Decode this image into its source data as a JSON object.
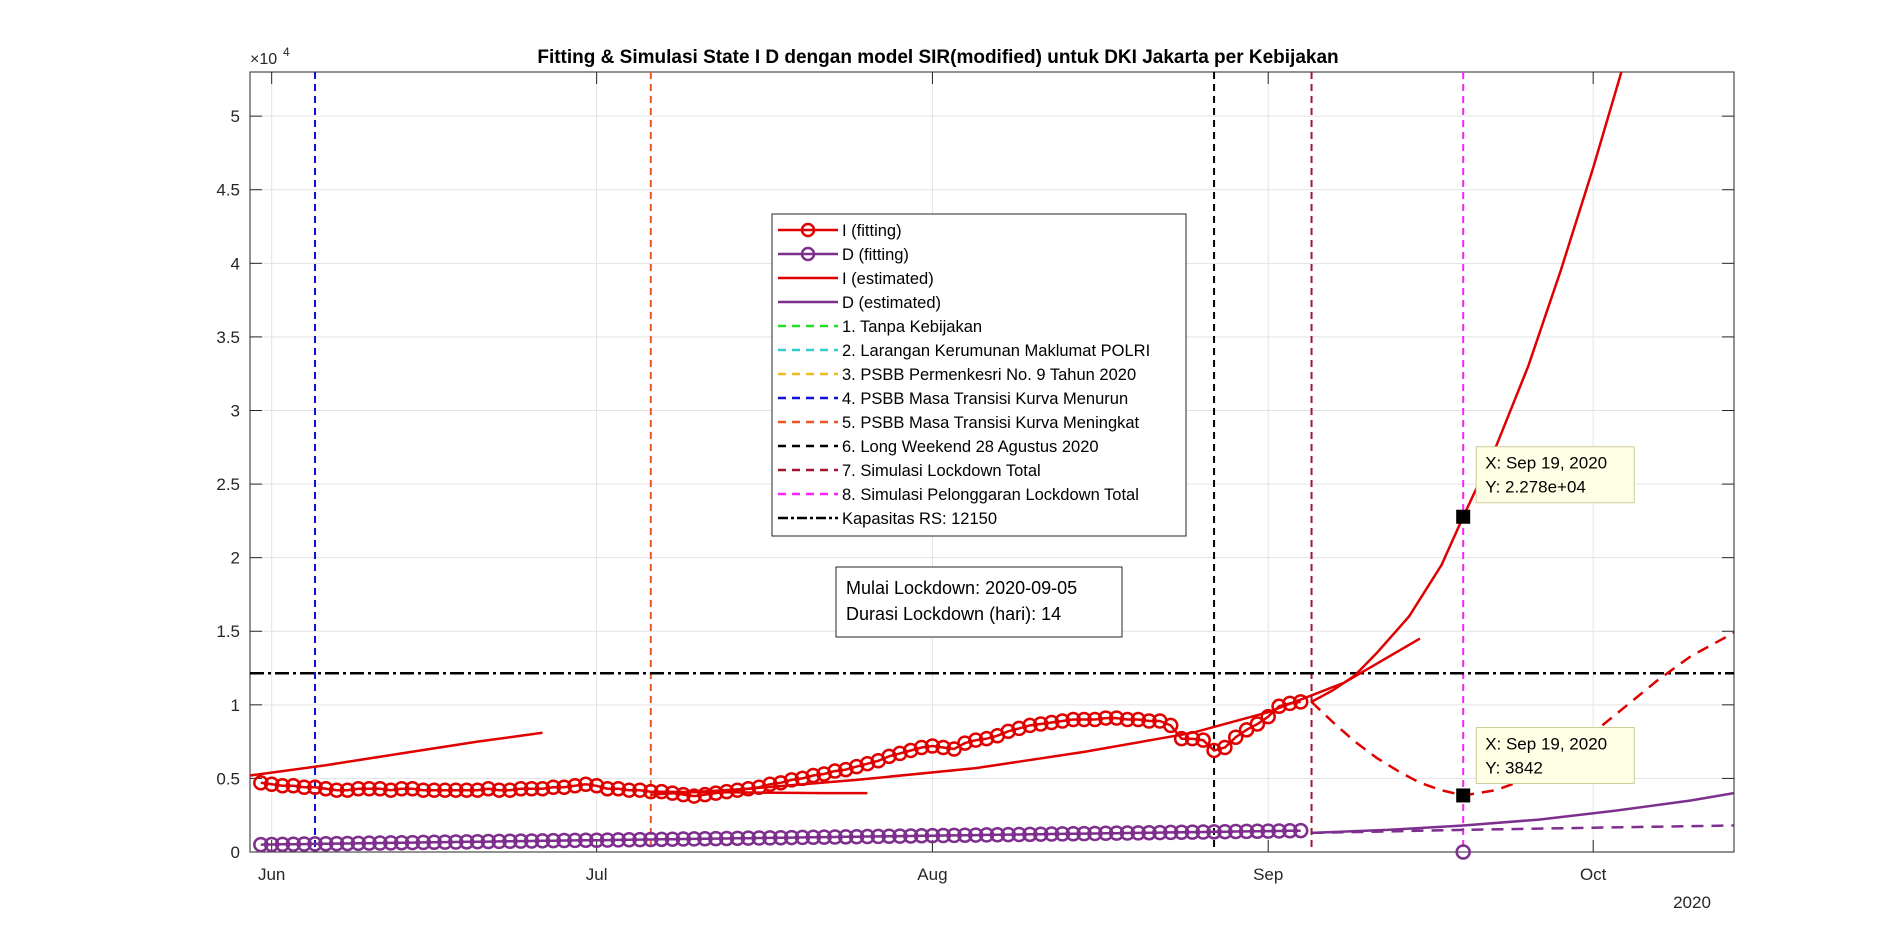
{
  "chart_data": {
    "type": "line",
    "title": "Fitting & Simulasi State  I D dengan model SIR(modified) untuk DKI Jakarta per Kebijakan",
    "xlabel": "",
    "ylabel": "",
    "x_range": [
      "2020-05-30",
      "2020-10-14"
    ],
    "ylim": [
      0,
      53000
    ],
    "y_exponent_label": "×10",
    "y_exponent_power": "4",
    "y_ticks": [
      {
        "value": 0,
        "label": "0"
      },
      {
        "value": 5000,
        "label": "0.5"
      },
      {
        "value": 10000,
        "label": "1"
      },
      {
        "value": 15000,
        "label": "1.5"
      },
      {
        "value": 20000,
        "label": "2"
      },
      {
        "value": 25000,
        "label": "2.5"
      },
      {
        "value": 30000,
        "label": "3"
      },
      {
        "value": 35000,
        "label": "3.5"
      },
      {
        "value": 40000,
        "label": "4"
      },
      {
        "value": 45000,
        "label": "4.5"
      },
      {
        "value": 50000,
        "label": "5"
      }
    ],
    "x_ticks": [
      {
        "date": "2020-06-01",
        "label": "Jun"
      },
      {
        "date": "2020-07-01",
        "label": "Jul"
      },
      {
        "date": "2020-08-01",
        "label": "Aug"
      },
      {
        "date": "2020-09-01",
        "label": "Sep"
      },
      {
        "date": "2020-10-01",
        "label": "Oct"
      }
    ],
    "x_year_label": "2020",
    "grid": true,
    "legend_position": "center",
    "legend": [
      {
        "label": "I (fitting)",
        "color": "#e00000",
        "style": "solid-marker"
      },
      {
        "label": "D (fitting)",
        "color": "#7e2f8e",
        "style": "solid-marker"
      },
      {
        "label": "I (estimated)",
        "color": "#e00000",
        "style": "solid"
      },
      {
        "label": "D (estimated)",
        "color": "#7e2f8e",
        "style": "solid"
      },
      {
        "label": "1. Tanpa Kebijakan",
        "color": "#22dd22",
        "style": "dashed"
      },
      {
        "label": "2. Larangan Kerumunan Maklumat POLRI",
        "color": "#33cccc",
        "style": "dashed"
      },
      {
        "label": "3. PSBB Permenkesri No. 9 Tahun 2020",
        "color": "#eebb22",
        "style": "dashed"
      },
      {
        "label": "4. PSBB Masa Transisi Kurva Menurun",
        "color": "#1010dd",
        "style": "dashed"
      },
      {
        "label": "5. PSBB Masa Transisi Kurva Meningkat",
        "color": "#ee5522",
        "style": "dashed"
      },
      {
        "label": "6. Long Weekend 28 Agustus 2020",
        "color": "#000000",
        "style": "dashed"
      },
      {
        "label": "7. Simulasi Lockdown Total",
        "color": "#a2142f",
        "style": "dashed"
      },
      {
        "label": "8. Simulasi Pelonggaran Lockdown Total",
        "color": "#ff22ff",
        "style": "dashed"
      },
      {
        "label": "Kapasitas RS: 12150",
        "color": "#000000",
        "style": "dashdot"
      }
    ],
    "capacity": {
      "value": 12150
    },
    "policy_lines": [
      {
        "date": "2020-06-05",
        "color": "#1010dd"
      },
      {
        "date": "2020-07-06",
        "color": "#ee5522"
      },
      {
        "date": "2020-08-27",
        "color": "#000000"
      },
      {
        "date": "2020-09-05",
        "color": "#a2142f"
      },
      {
        "date": "2020-09-19",
        "color": "#ff22ff"
      }
    ],
    "series": [
      {
        "name": "I (fitting)",
        "color": "#e00000",
        "marker": "circle",
        "start_date": "2020-05-31",
        "values": [
          4700,
          4600,
          4500,
          4500,
          4400,
          4400,
          4300,
          4200,
          4200,
          4300,
          4300,
          4300,
          4200,
          4300,
          4300,
          4200,
          4200,
          4200,
          4200,
          4200,
          4200,
          4300,
          4200,
          4200,
          4300,
          4300,
          4300,
          4400,
          4400,
          4500,
          4600,
          4500,
          4300,
          4300,
          4200,
          4200,
          4100,
          4100,
          4000,
          3900,
          3800,
          3900,
          4000,
          4100,
          4200,
          4300,
          4400,
          4600,
          4700,
          4900,
          5000,
          5200,
          5300,
          5500,
          5600,
          5800,
          6000,
          6200,
          6500,
          6700,
          6900,
          7100,
          7200,
          7100,
          7000,
          7400,
          7600,
          7700,
          7900,
          8200,
          8400,
          8600,
          8700,
          8800,
          8900,
          9000,
          9000,
          9000,
          9100,
          9100,
          9000,
          9000,
          8900,
          8900,
          8600,
          7700,
          7700,
          7600,
          6900,
          7100,
          7800,
          8300,
          8700,
          9200,
          9900,
          10100,
          10200
        ]
      },
      {
        "name": "D (fitting)",
        "color": "#7e2f8e",
        "marker": "circle",
        "start_date": "2020-05-31",
        "values": [
          500,
          510,
          520,
          530,
          540,
          550,
          560,
          570,
          580,
          590,
          600,
          610,
          620,
          630,
          640,
          650,
          660,
          670,
          680,
          690,
          700,
          710,
          720,
          730,
          740,
          750,
          760,
          770,
          780,
          790,
          800,
          800,
          810,
          820,
          830,
          840,
          850,
          860,
          870,
          880,
          890,
          900,
          910,
          920,
          930,
          940,
          950,
          960,
          970,
          980,
          990,
          1000,
          1010,
          1020,
          1030,
          1040,
          1050,
          1060,
          1070,
          1080,
          1090,
          1100,
          1110,
          1120,
          1130,
          1140,
          1150,
          1160,
          1170,
          1180,
          1190,
          1200,
          1210,
          1220,
          1230,
          1240,
          1250,
          1260,
          1270,
          1280,
          1290,
          1300,
          1310,
          1320,
          1330,
          1340,
          1350,
          1360,
          1370,
          1380,
          1390,
          1400,
          1410,
          1420,
          1430,
          1440,
          1450
        ]
      },
      {
        "name": "I (estimated) segment 1",
        "color": "#e00000",
        "style": "solid",
        "points": [
          [
            "2020-05-30",
            5200
          ],
          [
            "2020-06-06",
            5900
          ],
          [
            "2020-06-13",
            6700
          ],
          [
            "2020-06-20",
            7500
          ],
          [
            "2020-06-26",
            8100
          ]
        ]
      },
      {
        "name": "I (estimated) segment 2",
        "color": "#e00000",
        "style": "solid",
        "points": [
          [
            "2020-07-06",
            4100
          ],
          [
            "2020-07-14",
            4050
          ],
          [
            "2020-07-22",
            4000
          ],
          [
            "2020-07-26",
            4000
          ]
        ]
      },
      {
        "name": "I (estimated) segment 3",
        "color": "#e00000",
        "style": "solid",
        "points": [
          [
            "2020-07-06",
            3900
          ],
          [
            "2020-07-15",
            4300
          ],
          [
            "2020-07-25",
            4900
          ],
          [
            "2020-08-05",
            5700
          ],
          [
            "2020-08-15",
            6800
          ],
          [
            "2020-08-25",
            8100
          ],
          [
            "2020-09-01",
            9500
          ],
          [
            "2020-09-08",
            11500
          ],
          [
            "2020-09-15",
            14500
          ]
        ]
      },
      {
        "name": "I (estimated) segment 4",
        "color": "#e00000",
        "style": "solid",
        "points": [
          [
            "2020-09-05",
            10200
          ],
          [
            "2020-09-07",
            11000
          ],
          [
            "2020-09-09",
            12000
          ],
          [
            "2020-09-11",
            13500
          ],
          [
            "2020-09-14",
            16000
          ],
          [
            "2020-09-17",
            19500
          ],
          [
            "2020-09-19",
            22780
          ],
          [
            "2020-09-22",
            27500
          ],
          [
            "2020-09-25",
            33000
          ],
          [
            "2020-09-28",
            39500
          ],
          [
            "2020-10-01",
            46500
          ],
          [
            "2020-10-04",
            54000
          ]
        ]
      },
      {
        "name": "I (simulation)",
        "color": "#e00000",
        "style": "dashed",
        "points": [
          [
            "2020-09-05",
            10200
          ],
          [
            "2020-09-07",
            8800
          ],
          [
            "2020-09-09",
            7500
          ],
          [
            "2020-09-11",
            6400
          ],
          [
            "2020-09-13",
            5500
          ],
          [
            "2020-09-15",
            4700
          ],
          [
            "2020-09-17",
            4200
          ],
          [
            "2020-09-19",
            3842
          ],
          [
            "2020-09-22",
            4200
          ],
          [
            "2020-09-25",
            5000
          ],
          [
            "2020-09-28",
            6400
          ],
          [
            "2020-10-01",
            8100
          ],
          [
            "2020-10-04",
            9900
          ],
          [
            "2020-10-07",
            11700
          ],
          [
            "2020-10-10",
            13300
          ],
          [
            "2020-10-14",
            14900
          ]
        ]
      },
      {
        "name": "D (estimated)",
        "color": "#7e2f8e",
        "style": "solid",
        "points": [
          [
            "2020-09-05",
            1300
          ],
          [
            "2020-09-12",
            1500
          ],
          [
            "2020-09-19",
            1800
          ],
          [
            "2020-09-26",
            2200
          ],
          [
            "2020-10-03",
            2800
          ],
          [
            "2020-10-10",
            3500
          ],
          [
            "2020-10-14",
            4000
          ]
        ]
      },
      {
        "name": "D (simulation)",
        "color": "#7e2f8e",
        "style": "dashed",
        "points": [
          [
            "2020-09-05",
            1300
          ],
          [
            "2020-09-19",
            1500
          ],
          [
            "2020-10-01",
            1650
          ],
          [
            "2020-10-14",
            1800
          ]
        ]
      }
    ],
    "extra_points": [
      {
        "date": "2020-09-19",
        "value": 0,
        "color": "#7e2f8e",
        "marker": "circle"
      }
    ],
    "datatips": [
      {
        "date": "2020-09-19",
        "value": 22780,
        "line1": "X: Sep 19, 2020",
        "line2": "Y: 2.278e+04"
      },
      {
        "date": "2020-09-19",
        "value": 3842,
        "line1": "X: Sep 19, 2020",
        "line2": "Y: 3842"
      }
    ],
    "annotation": {
      "line1": "Mulai Lockdown: 2020-09-05",
      "line2": "Durasi Lockdown (hari): 14"
    }
  }
}
